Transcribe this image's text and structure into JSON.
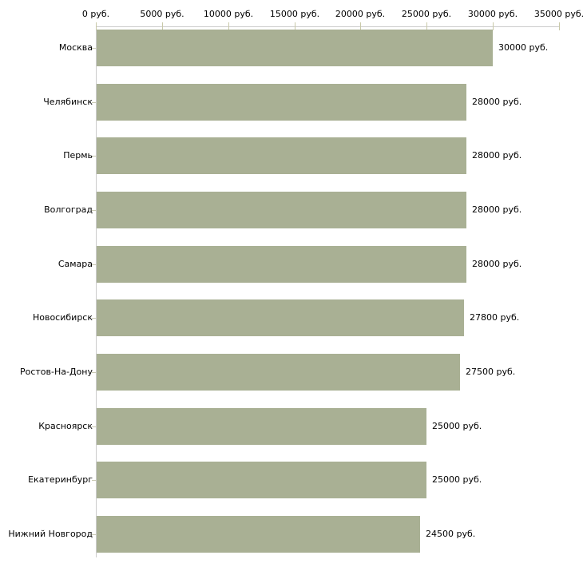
{
  "chart_data": {
    "type": "bar",
    "orientation": "horizontal",
    "title": "",
    "categories": [
      "Москва",
      "Челябинск",
      "Пермь",
      "Волгоград",
      "Самара",
      "Новосибирск",
      "Ростов-На-Дону",
      "Красноярск",
      "Екатеринбург",
      "Нижний Новгород"
    ],
    "values": [
      30000,
      28000,
      28000,
      28000,
      28000,
      27800,
      27500,
      25000,
      25000,
      24500
    ],
    "value_labels": [
      "30000 руб.",
      "28000 руб.",
      "28000 руб.",
      "28000 руб.",
      "28000 руб.",
      "27800 руб.",
      "27500 руб.",
      "25000 руб.",
      "25000 руб.",
      "24500 руб."
    ],
    "x_axis": {
      "position": "top",
      "min": 0,
      "max": 35000,
      "ticks": [
        0,
        5000,
        10000,
        15000,
        20000,
        25000,
        30000,
        35000
      ],
      "tick_labels": [
        "0 руб.",
        "5000 руб.",
        "10000 руб.",
        "15000 руб.",
        "20000 руб.",
        "25000 руб.",
        "30000 руб.",
        "35000 руб."
      ]
    },
    "xlabel": "",
    "ylabel": "",
    "grid": false,
    "legend": false,
    "colors": {
      "bar": "#a9b094",
      "axis_line": "#cccccc",
      "x_tick_mark": "#c9c9a9",
      "y_tick_mark": "#c9c9b3",
      "text": "#000000",
      "background": "#ffffff"
    }
  }
}
